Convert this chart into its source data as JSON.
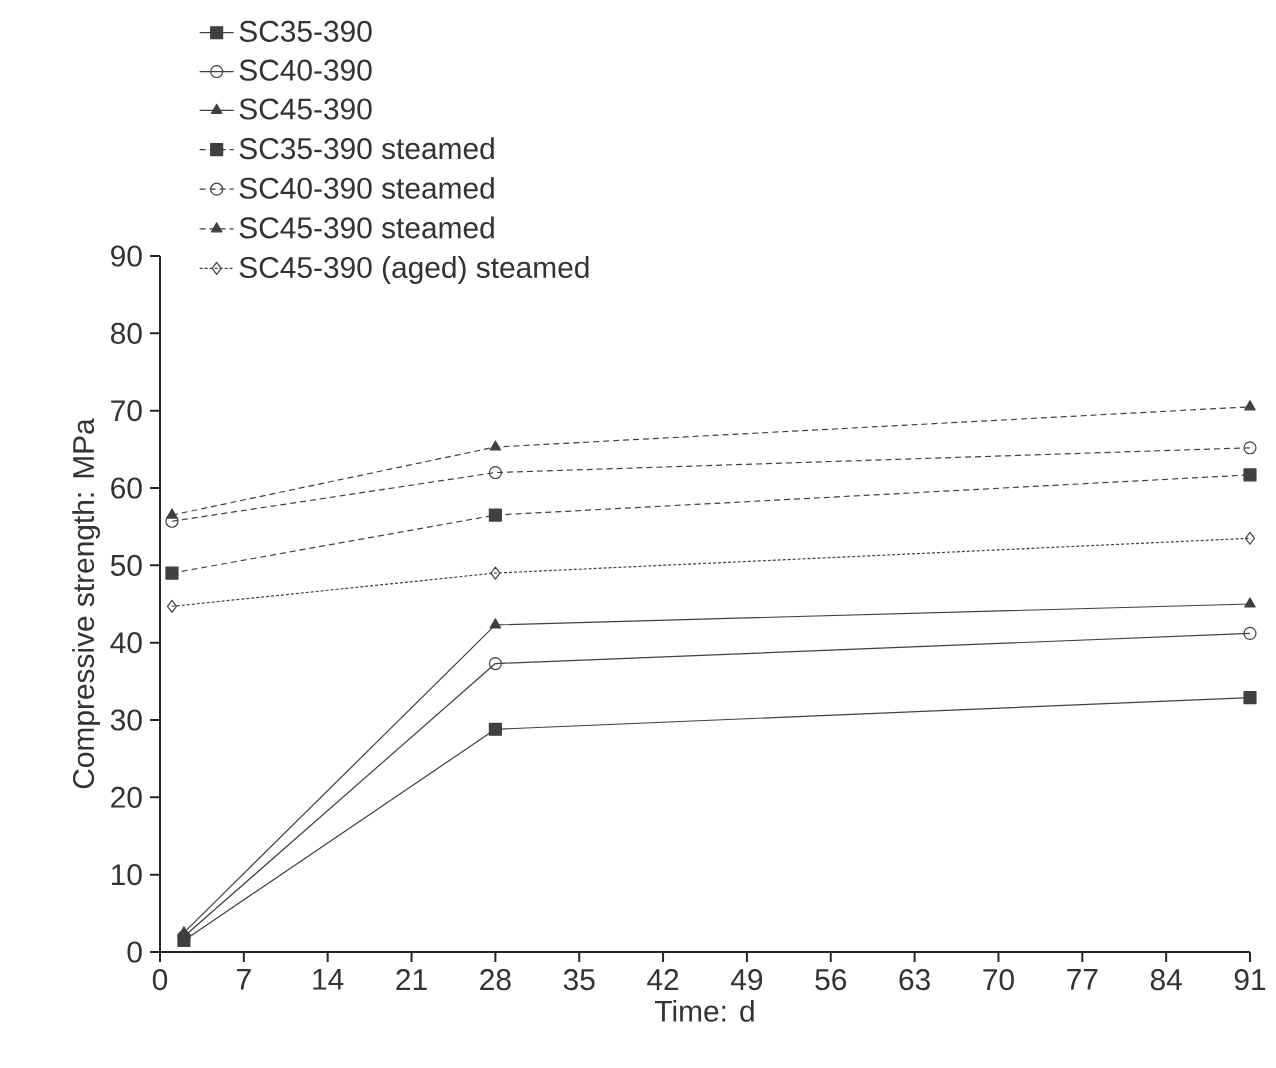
{
  "chart_data": {
    "type": "line",
    "xlabel": "Time: d",
    "ylabel": "Compressive strength: MPa",
    "xlim": [
      0,
      91
    ],
    "xticks": [
      0,
      7,
      14,
      21,
      28,
      35,
      42,
      49,
      56,
      63,
      70,
      77,
      84,
      91
    ],
    "ylim": [
      0,
      90
    ],
    "yticks": [
      0,
      10,
      20,
      30,
      40,
      50,
      60,
      70,
      80,
      90
    ],
    "grid": false,
    "legend": "top left",
    "series": [
      {
        "name": "SC35-390",
        "color": "#404040",
        "marker": "square",
        "line_style": "solid",
        "x": [
          2,
          28,
          91
        ],
        "values": [
          1.5,
          28.8,
          32.9
        ]
      },
      {
        "name": "SC40-390",
        "color": "#404040",
        "marker": "circle",
        "line_style": "solid",
        "x": [
          2,
          28,
          91
        ],
        "values": [
          2.0,
          37.3,
          41.2
        ]
      },
      {
        "name": "SC45-390",
        "color": "#404040",
        "marker": "triangle",
        "line_style": "solid",
        "x": [
          2,
          28,
          91
        ],
        "values": [
          2.5,
          42.3,
          45.0
        ]
      },
      {
        "name": "SC35-390 steamed",
        "color": "#404040",
        "marker": "square",
        "line_style": "dashed",
        "x": [
          1,
          28,
          91
        ],
        "values": [
          49.0,
          56.5,
          61.7
        ]
      },
      {
        "name": "SC40-390 steamed",
        "color": "#404040",
        "marker": "circle",
        "line_style": "dashed",
        "x": [
          1,
          28,
          91
        ],
        "values": [
          55.7,
          62.0,
          65.2
        ]
      },
      {
        "name": "SC45-390 steamed",
        "color": "#404040",
        "marker": "triangle",
        "line_style": "dashed",
        "x": [
          1,
          28,
          91
        ],
        "values": [
          56.5,
          65.3,
          70.5
        ]
      },
      {
        "name": "SC45-390 (aged) steamed",
        "color": "#404040",
        "marker": "diamond",
        "line_style": "dotted",
        "x": [
          1,
          28,
          91
        ],
        "values": [
          44.7,
          49.0,
          53.5
        ]
      }
    ]
  }
}
